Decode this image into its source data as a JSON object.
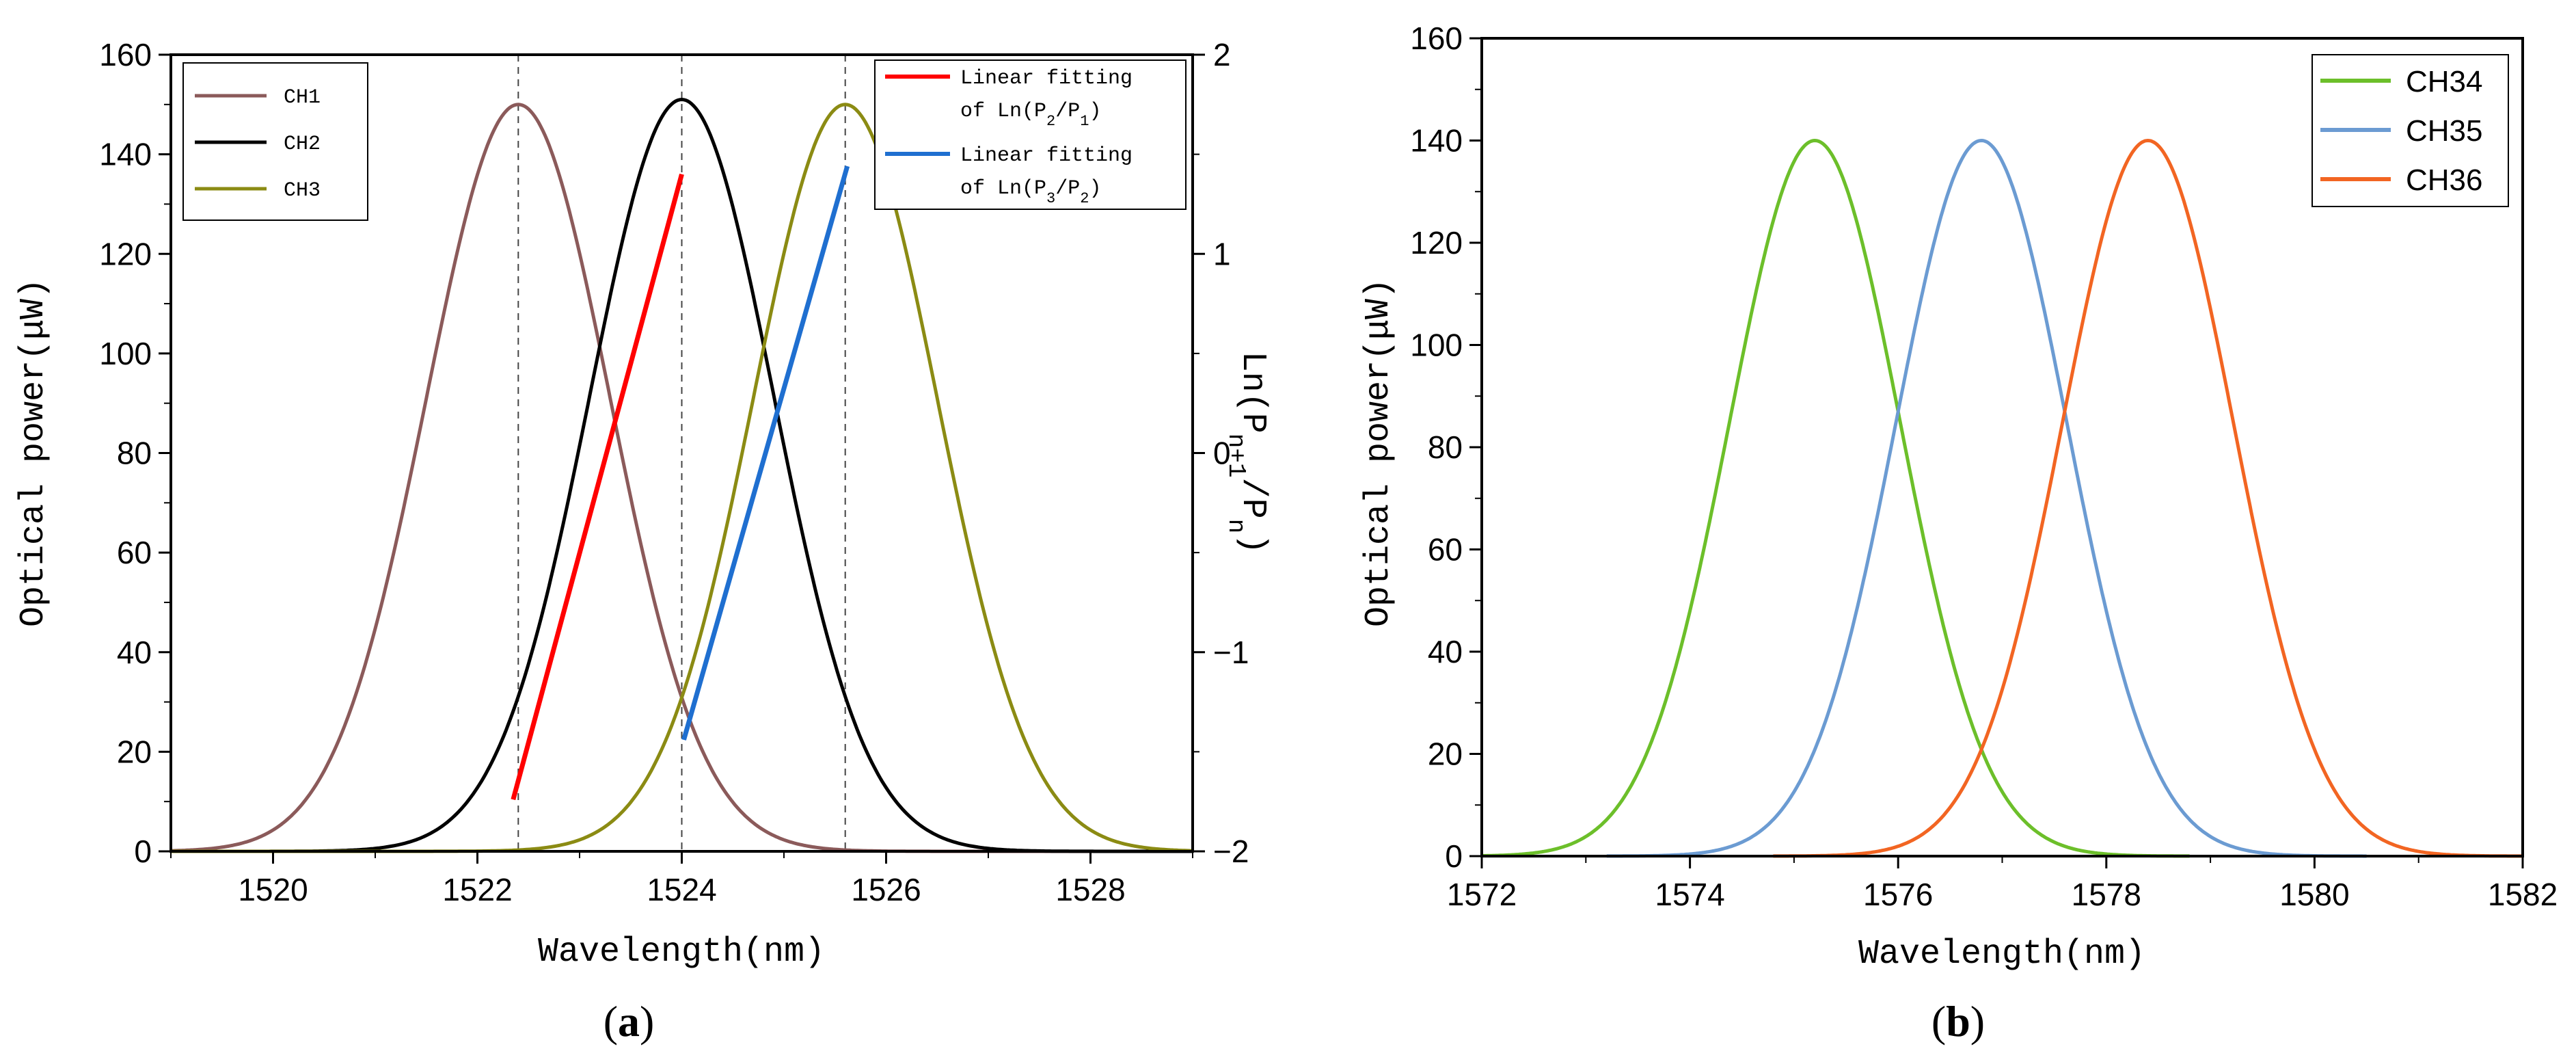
{
  "chart_data": [
    {
      "panel": "a",
      "type": "line",
      "panel_label_open": "(",
      "panel_label_letter": "a",
      "panel_label_close": ")",
      "xlabel": "Wavelength(nm)",
      "ylabel": "Optical power(μW)",
      "y2label": "Ln(P",
      "y2label_sub1": "n+1",
      "y2label_mid": "/P",
      "y2label_sub2": "n",
      "y2label_end": ")",
      "xlim": [
        1519,
        1529
      ],
      "ylim": [
        0,
        160
      ],
      "y2lim": [
        -2,
        2
      ],
      "xticks": [
        1520,
        1522,
        1524,
        1526,
        1528
      ],
      "yticks": [
        0,
        20,
        40,
        60,
        80,
        100,
        120,
        140,
        160
      ],
      "y2ticks": [
        -2,
        -1,
        0,
        1,
        2
      ],
      "vlines": [
        1522.4,
        1524.0,
        1525.6
      ],
      "series": [
        {
          "name": "CH1",
          "center": 1522.4,
          "peak": 150,
          "sigma": 0.9,
          "color": "#8b5a5a"
        },
        {
          "name": "CH2",
          "center": 1524.0,
          "peak": 151,
          "sigma": 0.9,
          "color": "#000000"
        },
        {
          "name": "CH3",
          "center": 1525.6,
          "peak": 150,
          "sigma": 0.9,
          "color": "#8b8b13"
        }
      ],
      "fits": [
        {
          "name_line1": "Linear fitting",
          "name_line2_pre": "of Ln(P",
          "sub_a": "2",
          "name_mid": "/P",
          "sub_b": "1",
          "name_end": ")",
          "color": "#ff0000",
          "x": [
            1522.35,
            1524.0
          ],
          "y": [
            -1.74,
            1.4
          ]
        },
        {
          "name_line1": "Linear fitting",
          "name_line2_pre": "of Ln(P",
          "sub_a": "3",
          "name_mid": "/P",
          "sub_b": "2",
          "name_end": ")",
          "color": "#1f6fd0",
          "x": [
            1524.02,
            1525.62
          ],
          "y": [
            -1.44,
            1.44
          ]
        }
      ]
    },
    {
      "panel": "b",
      "type": "line",
      "panel_label_open": "(",
      "panel_label_letter": "b",
      "panel_label_close": ")",
      "xlabel": "Wavelength(nm)",
      "ylabel": "Optical power(μW)",
      "xlim": [
        1572,
        1582
      ],
      "ylim": [
        0,
        160
      ],
      "xticks": [
        1572,
        1574,
        1576,
        1578,
        1580,
        1582
      ],
      "yticks": [
        0,
        20,
        40,
        60,
        80,
        100,
        120,
        140,
        160
      ],
      "series": [
        {
          "name": "CH34",
          "center": 1575.2,
          "peak": 140,
          "sigma": 0.82,
          "color": "#6cbf2a",
          "x_start": 1572.0,
          "x_end": 1578.8
        },
        {
          "name": "CH35",
          "center": 1576.8,
          "peak": 140,
          "sigma": 0.82,
          "color": "#6b9bd2",
          "x_start": 1573.2,
          "x_end": 1580.5
        },
        {
          "name": "CH36",
          "center": 1578.4,
          "peak": 140,
          "sigma": 0.82,
          "color": "#f26522",
          "x_start": 1574.8,
          "x_end": 1582.0
        }
      ]
    }
  ]
}
